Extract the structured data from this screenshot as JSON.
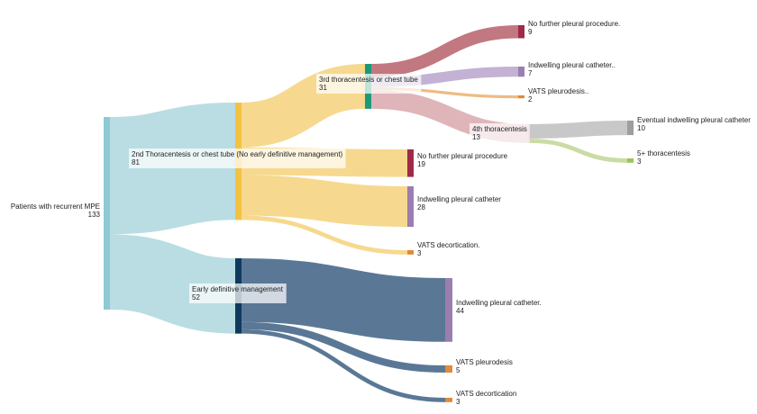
{
  "chart_data": {
    "type": "sankey",
    "nodes": [
      {
        "id": "root",
        "label": "Patients with recurrent MPE",
        "value": "133",
        "color": "#8fc9d3"
      },
      {
        "id": "second",
        "label": "2nd Thoracentesis or chest tube (No early definitive management)",
        "value": "81",
        "color": "#f2c244"
      },
      {
        "id": "early",
        "label": "Early definitive management",
        "value": "52",
        "color": "#0e3a5c"
      },
      {
        "id": "third",
        "label": "3rd thoracentesis or chest tube",
        "value": "31",
        "color": "#1a9a78"
      },
      {
        "id": "nf19",
        "label": "No further pleural procedure",
        "value": "19",
        "color": "#9e2a48"
      },
      {
        "id": "ipc28",
        "label": "Indwelling pleural catheter",
        "value": "28",
        "color": "#9b7db0"
      },
      {
        "id": "vd3a",
        "label": "VATS decortication.",
        "value": "3",
        "color": "#e08a3a"
      },
      {
        "id": "ipc44",
        "label": "Indwelling pleural catheter.",
        "value": "44",
        "color": "#9b7db0"
      },
      {
        "id": "vp5",
        "label": "VATS pleurodesis",
        "value": "5",
        "color": "#e08a3a"
      },
      {
        "id": "vd3b",
        "label": "VATS decortication",
        "value": "3",
        "color": "#e08a3a"
      },
      {
        "id": "nf9",
        "label": "No further pleural procedure.",
        "value": "9",
        "color": "#9e2a48"
      },
      {
        "id": "ipc7",
        "label": "Indwelling pleural catheter..",
        "value": "7",
        "color": "#9b7db0"
      },
      {
        "id": "vp2",
        "label": "VATS pleurodesis..",
        "value": "2",
        "color": "#e08a3a"
      },
      {
        "id": "fourth",
        "label": "4th thoracentesis",
        "value": "13",
        "color": "#d9a0a6"
      },
      {
        "id": "ev10",
        "label": "Eventual indwelling pleural catheter",
        "value": "10",
        "color": "#9e9e9e"
      },
      {
        "id": "five3",
        "label": "5+ thoracentesis",
        "value": "3",
        "color": "#9ac45a"
      }
    ],
    "links": [
      {
        "source": "root",
        "target": "second",
        "value": 81,
        "color": "#b9dde2"
      },
      {
        "source": "root",
        "target": "early",
        "value": 52,
        "color": "#b9dde2"
      },
      {
        "source": "second",
        "target": "third",
        "value": 31,
        "color": "#f6d98f"
      },
      {
        "source": "second",
        "target": "nf19",
        "value": 19,
        "color": "#f6d98f"
      },
      {
        "source": "second",
        "target": "ipc28",
        "value": 28,
        "color": "#f6d98f"
      },
      {
        "source": "second",
        "target": "vd3a",
        "value": 3,
        "color": "#f6d98f"
      },
      {
        "source": "early",
        "target": "ipc44",
        "value": 44,
        "color": "#5a7896"
      },
      {
        "source": "early",
        "target": "vp5",
        "value": 5,
        "color": "#5a7896"
      },
      {
        "source": "early",
        "target": "vd3b",
        "value": 3,
        "color": "#5a7896"
      },
      {
        "source": "third",
        "target": "nf9",
        "value": 9,
        "color": "#c27880"
      },
      {
        "source": "third",
        "target": "ipc7",
        "value": 7,
        "color": "#c3b2d3"
      },
      {
        "source": "third",
        "target": "vp2",
        "value": 2,
        "color": "#eebb85"
      },
      {
        "source": "third",
        "target": "fourth",
        "value": 13,
        "color": "#dfb5b9"
      },
      {
        "source": "fourth",
        "target": "ev10",
        "value": 10,
        "color": "#c8c8c8"
      },
      {
        "source": "fourth",
        "target": "five3",
        "value": 3,
        "color": "#c9dca4"
      }
    ]
  }
}
